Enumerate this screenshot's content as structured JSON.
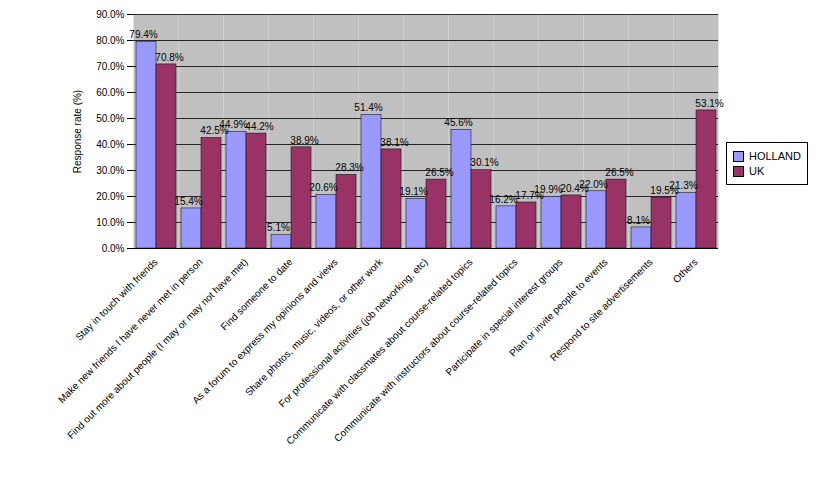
{
  "chart_data": {
    "type": "bar",
    "y_label": "Response rate (%)",
    "categories": [
      "Stay in touch with friends",
      "Make new friends I have never met in person",
      "Find out more about people (I may or may not have met)",
      "Find someone to date",
      "As a forum to express my opinions and views",
      "Share photos, music, videos, or other work",
      "For professional activities (job networking, etc)",
      "Communicate with classmates about course-related topics",
      "Communicate with instructors about course-related topics",
      "Participate in special interest groups",
      "Plan or invite people to events",
      "Respond to site advertisements",
      "Others"
    ],
    "series": [
      {
        "name": "HOLLAND",
        "color": "#9999ff",
        "values": [
          79.4,
          15.4,
          44.9,
          5.1,
          20.6,
          51.4,
          19.1,
          45.6,
          16.2,
          19.9,
          22.0,
          8.1,
          21.3
        ],
        "value_labels": [
          "79.4%",
          "15.4%",
          "44.9%",
          "5.1%",
          "20.6%",
          "51.4%",
          "19.1%",
          "45.6%",
          "16.2%",
          "19.9%",
          "22.0%",
          "8.1%",
          "21.3%"
        ]
      },
      {
        "name": "UK",
        "color": "#993366",
        "values": [
          70.8,
          42.5,
          44.2,
          38.9,
          28.3,
          38.1,
          26.5,
          30.1,
          17.7,
          20.4,
          26.5,
          19.5,
          53.1
        ],
        "value_labels": [
          "70.8%",
          "42.5%",
          "44.2%",
          "38.9%",
          "28.3%",
          "38.1%",
          "26.5%",
          "30.1%",
          "17.7%",
          "20.4%",
          "26.5%",
          "19.5%",
          "53.1%"
        ]
      }
    ],
    "ylim": [
      0,
      90
    ],
    "yticks": [
      {
        "value": 0,
        "label": "0.0%"
      },
      {
        "value": 10,
        "label": "10.0%"
      },
      {
        "value": 20,
        "label": "20.0%"
      },
      {
        "value": 30,
        "label": "30.0%"
      },
      {
        "value": 40,
        "label": "40.0%"
      },
      {
        "value": 50,
        "label": "50.0%"
      },
      {
        "value": 60,
        "label": "60.0%"
      },
      {
        "value": 70,
        "label": "70.0%"
      },
      {
        "value": 80,
        "label": "80.0%"
      },
      {
        "value": 90,
        "label": "90.0%"
      }
    ],
    "grid": true,
    "data_labels": true,
    "legend": "right"
  }
}
